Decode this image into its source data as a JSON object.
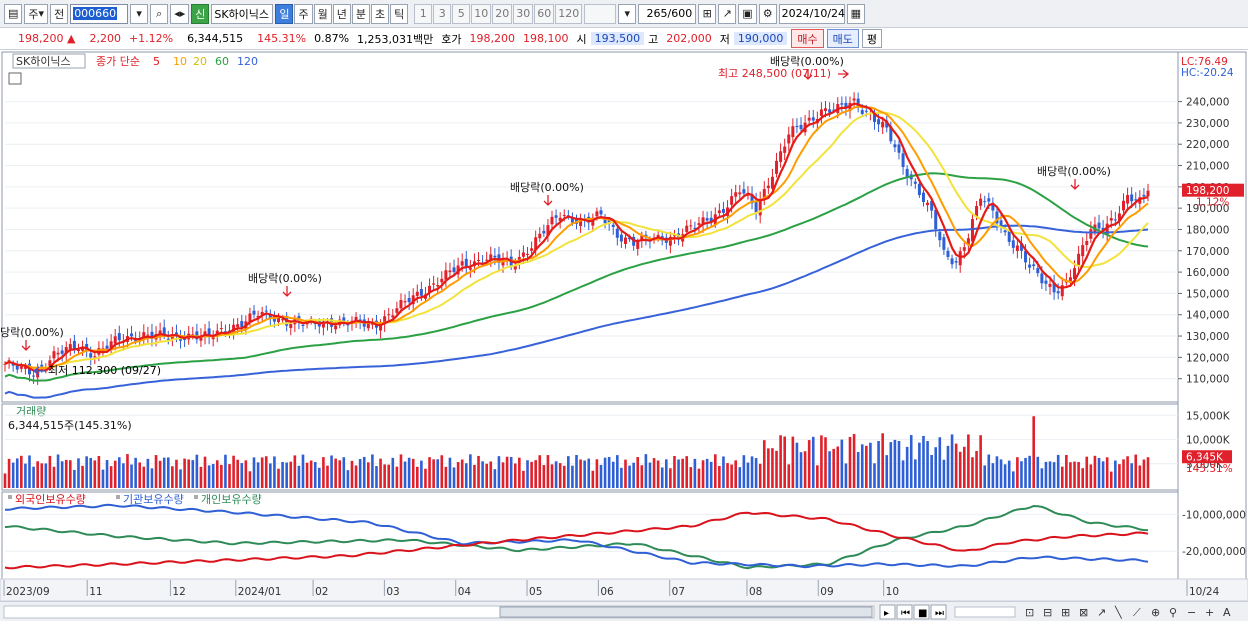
{
  "toolbar": {
    "menu_glyph": "▤",
    "type_label": "주",
    "jeon_label": "전",
    "stock_code": "000660",
    "stock_name": "SK하이닉스",
    "new_badge": "신",
    "periods": [
      "일",
      "주",
      "월",
      "년",
      "분",
      "초",
      "틱"
    ],
    "active_period": "일",
    "intervals": [
      "1",
      "3",
      "5",
      "10",
      "20",
      "30",
      "60",
      "120"
    ],
    "count": "265",
    "count_max": "/600",
    "date": "2024/10/24"
  },
  "quote": {
    "price": "198,200",
    "up_arrow": "▲",
    "change": "2,200",
    "change_pct": "+1.12%",
    "volume": "6,344,515",
    "volume_ratio": "145.31%",
    "turnover": "0.87%",
    "amount": "1,253,031백만",
    "hoga_label": "호가",
    "ask": "198,200",
    "bid": "198,100",
    "open_label": "시",
    "open": "193,500",
    "high_label": "고",
    "high": "202,000",
    "low_label": "저",
    "low": "190,000",
    "buy_label": "매수",
    "sell_label": "매도",
    "misc_label": "평"
  },
  "legend": {
    "stock": "SK하이닉스",
    "ma_label": "종가 단순",
    "ma_periods": [
      "5",
      "10",
      "20",
      "60",
      "120"
    ],
    "ma_colors": [
      "#e41b17",
      "#ff9c00",
      "#f3e23a",
      "#2ba144",
      "#3762d9"
    ]
  },
  "annotations": {
    "high_label": "최고 248,500 (07/11)",
    "low_label": "최저 112,300 (09/27)",
    "dividends": [
      "당락(0.00%)",
      "배당락(0.00%)",
      "배당락(0.00%)",
      "배당락(0.00%)",
      "배당락(0.00%)"
    ]
  },
  "right_panel": {
    "lc": "LC:76.49",
    "hc": "HC:-20.24",
    "price_tag": "198,200",
    "pct_tag": "1.12%",
    "vol_tag": "6,345K",
    "vol_pct_tag": "145.31%"
  },
  "volume_panel": {
    "title": "거래량",
    "value": "6,344,515주(145.31%)"
  },
  "holding_panel": {
    "legends": [
      "외국인보유수량",
      "기관보유수량",
      "개인보유수량"
    ],
    "colors": [
      "#d9121b",
      "#2f5fd4",
      "#2e8b57"
    ]
  },
  "chart_data": {
    "type": "candlestick",
    "price_axis": {
      "ticks": [
        "240,000",
        "230,000",
        "220,000",
        "210,000",
        "200,000",
        "190,000",
        "180,000",
        "170,000",
        "160,000",
        "150,000",
        "140,000",
        "130,000",
        "120,000",
        "110,000"
      ],
      "values": [
        240000,
        230000,
        220000,
        210000,
        200000,
        190000,
        180000,
        170000,
        160000,
        150000,
        140000,
        130000,
        120000,
        110000
      ],
      "ylim": [
        100000,
        252000
      ]
    },
    "volume_axis": {
      "ticks": [
        "15,000K",
        "10,000K",
        "5,000K"
      ],
      "values": [
        15000,
        10000,
        5000
      ],
      "ylim": [
        0,
        16500
      ]
    },
    "holding_axis": {
      "ticks": [
        "-10,000,000",
        "-20,000,000"
      ],
      "values": [
        -10000000,
        -20000000
      ],
      "ylim": [
        -27000000,
        -5000000
      ]
    },
    "x_labels": [
      "2023/09",
      "11",
      "12",
      "2024/01",
      "02",
      "03",
      "04",
      "05",
      "06",
      "07",
      "08",
      "09",
      "10",
      "10/24"
    ],
    "x_label_positions": [
      0.0,
      0.07,
      0.14,
      0.195,
      0.26,
      0.32,
      0.38,
      0.44,
      0.5,
      0.56,
      0.625,
      0.685,
      0.74,
      0.96
    ],
    "close_keypoints": [
      [
        0,
        117000
      ],
      [
        4,
        114000
      ],
      [
        7,
        113000
      ],
      [
        12,
        121000
      ],
      [
        18,
        125000
      ],
      [
        22,
        122000
      ],
      [
        28,
        128000
      ],
      [
        34,
        131000
      ],
      [
        40,
        129000
      ],
      [
        46,
        131000
      ],
      [
        50,
        129000
      ],
      [
        56,
        135000
      ],
      [
        62,
        140000
      ],
      [
        68,
        138000
      ],
      [
        74,
        135000
      ],
      [
        80,
        137000
      ],
      [
        86,
        136000
      ],
      [
        90,
        135000
      ],
      [
        94,
        140000
      ],
      [
        100,
        148000
      ],
      [
        106,
        156000
      ],
      [
        112,
        163000
      ],
      [
        118,
        167000
      ],
      [
        124,
        163000
      ],
      [
        130,
        175000
      ],
      [
        136,
        187000
      ],
      [
        142,
        184000
      ],
      [
        146,
        186000
      ],
      [
        150,
        178000
      ],
      [
        154,
        174000
      ],
      [
        158,
        175000
      ],
      [
        164,
        177000
      ],
      [
        170,
        182000
      ],
      [
        176,
        190000
      ],
      [
        180,
        198000
      ],
      [
        184,
        190000
      ],
      [
        188,
        207000
      ],
      [
        192,
        224000
      ],
      [
        196,
        230000
      ],
      [
        200,
        236000
      ],
      [
        204,
        236000
      ],
      [
        208,
        240000
      ],
      [
        212,
        234000
      ],
      [
        216,
        226000
      ],
      [
        220,
        210000
      ],
      [
        224,
        198000
      ],
      [
        227,
        187000
      ],
      [
        230,
        168000
      ],
      [
        233,
        165000
      ],
      [
        236,
        178000
      ],
      [
        239,
        195000
      ],
      [
        242,
        188000
      ],
      [
        245,
        178000
      ],
      [
        248,
        172000
      ],
      [
        251,
        162000
      ],
      [
        254,
        156000
      ],
      [
        257,
        152000
      ],
      [
        260,
        155000
      ],
      [
        263,
        166000
      ],
      [
        266,
        180000
      ],
      [
        269,
        182000
      ],
      [
        272,
        186000
      ],
      [
        275,
        194000
      ],
      [
        278,
        193000
      ],
      [
        280,
        198200
      ]
    ],
    "foreign_keypoints": [
      [
        0,
        0.95
      ],
      [
        0.1,
        0.9
      ],
      [
        0.3,
        0.78
      ],
      [
        0.45,
        0.55
      ],
      [
        0.6,
        0.35
      ],
      [
        0.65,
        0.15
      ],
      [
        0.72,
        0.25
      ],
      [
        0.78,
        0.5
      ],
      [
        0.84,
        0.72
      ],
      [
        0.88,
        0.58
      ],
      [
        0.93,
        0.5
      ],
      [
        1.0,
        0.45
      ]
    ],
    "inst_keypoints": [
      [
        0,
        0.1
      ],
      [
        0.1,
        0.05
      ],
      [
        0.2,
        0.15
      ],
      [
        0.32,
        0.3
      ],
      [
        0.4,
        0.6
      ],
      [
        0.5,
        0.55
      ],
      [
        0.6,
        0.88
      ],
      [
        0.7,
        0.93
      ],
      [
        0.77,
        0.9
      ],
      [
        0.84,
        0.93
      ],
      [
        0.9,
        0.8
      ],
      [
        1.0,
        0.85
      ]
    ],
    "indiv_keypoints": [
      [
        0,
        0.35
      ],
      [
        0.1,
        0.5
      ],
      [
        0.2,
        0.6
      ],
      [
        0.35,
        0.55
      ],
      [
        0.45,
        0.7
      ],
      [
        0.55,
        0.6
      ],
      [
        0.65,
        0.95
      ],
      [
        0.72,
        0.9
      ],
      [
        0.78,
        0.55
      ],
      [
        0.84,
        0.35
      ],
      [
        0.9,
        0.05
      ],
      [
        0.95,
        0.3
      ],
      [
        1.0,
        0.4
      ]
    ]
  }
}
